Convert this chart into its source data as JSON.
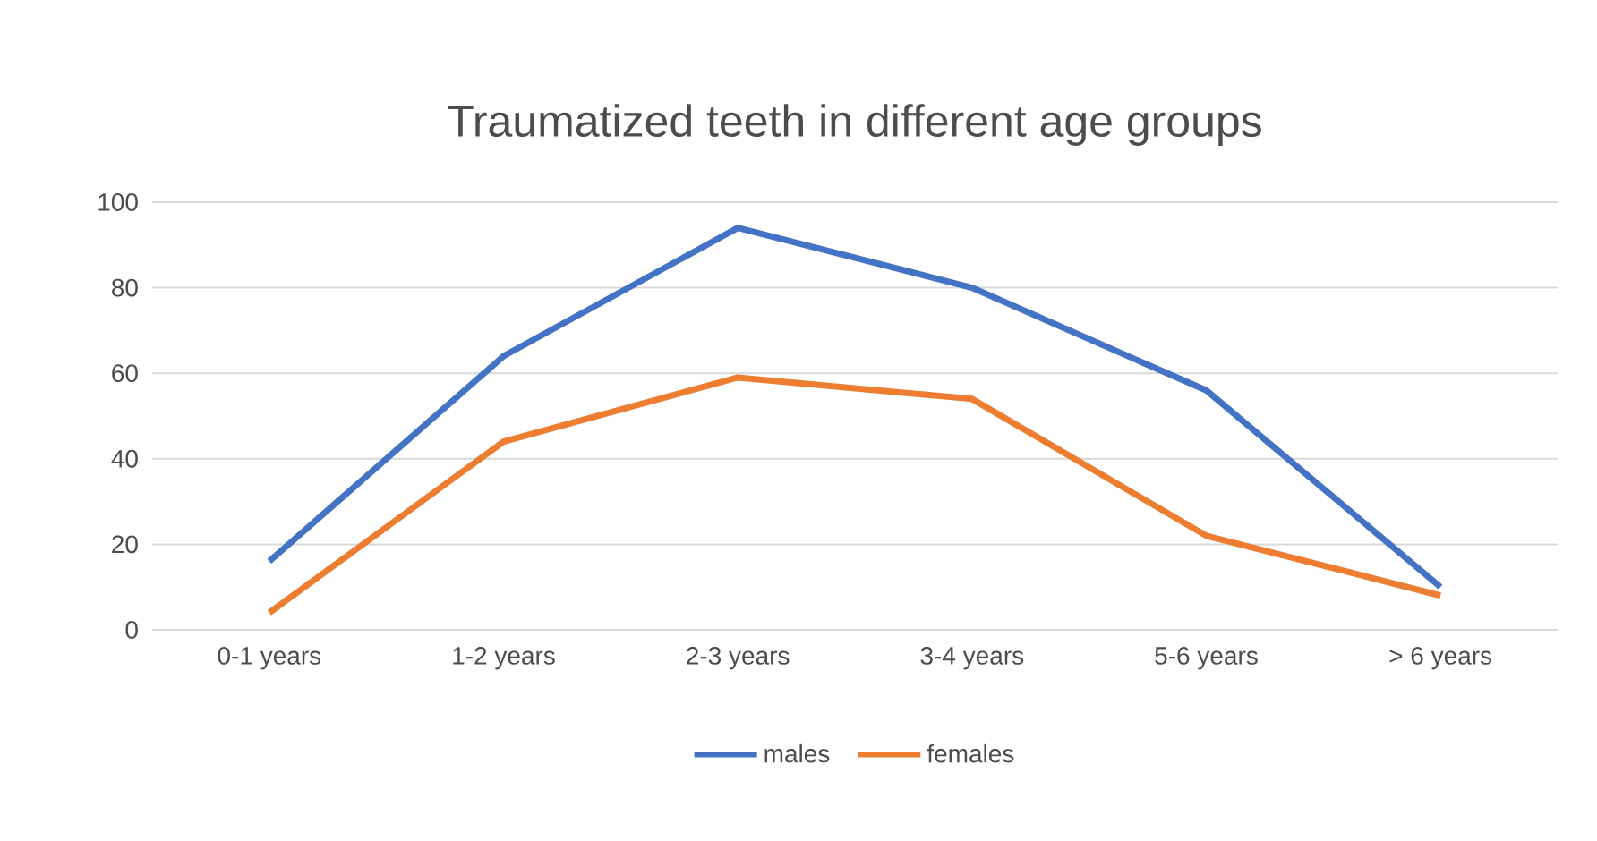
{
  "chart_data": {
    "type": "line",
    "title": "Traumatized teeth in different age groups",
    "categories": [
      "0-1 years",
      "1-2 years",
      "2-3 years",
      "3-4 years",
      "5-6 years",
      "> 6 years"
    ],
    "series": [
      {
        "name": "males",
        "color": "#4472c4",
        "values": [
          16,
          64,
          94,
          80,
          56,
          10
        ]
      },
      {
        "name": "females",
        "color": "#ed7d31",
        "values": [
          4,
          44,
          59,
          54,
          22,
          8
        ]
      }
    ],
    "ylim": [
      0,
      100
    ],
    "yticks": [
      0,
      20,
      40,
      60,
      80,
      100
    ],
    "grid": "y",
    "legend": "bottom",
    "marker": "none",
    "line_style": "solid"
  }
}
